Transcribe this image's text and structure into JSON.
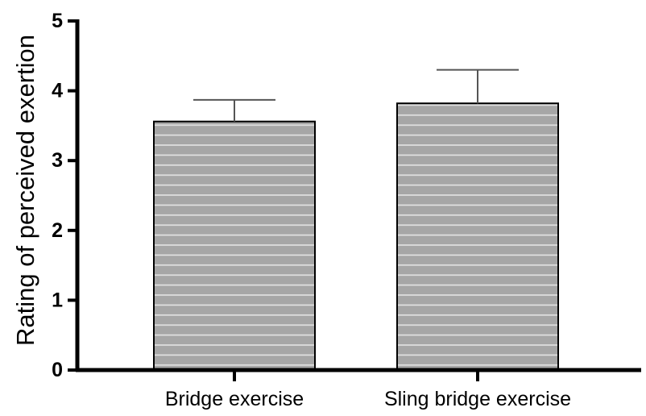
{
  "chart_data": {
    "type": "bar",
    "title": "",
    "xlabel": "",
    "ylabel": "Rating of perceived exertion",
    "categories": [
      "Bridge exercise",
      "Sling bridge exercise"
    ],
    "series": [
      {
        "values": [
          3.56,
          3.82
        ],
        "error_upper": [
          0.31,
          0.48
        ]
      }
    ],
    "ylim": [
      0,
      5
    ],
    "yticks": [
      "0",
      "1",
      "2",
      "3",
      "4",
      "5"
    ],
    "grid": false,
    "legend": "none",
    "colors": {
      "bar_fill": "#a6a6a6",
      "bar_stripe": "#e4e4e4",
      "bar_edge": "#000000",
      "axis": "#000000",
      "error_bar": "#555555"
    }
  }
}
